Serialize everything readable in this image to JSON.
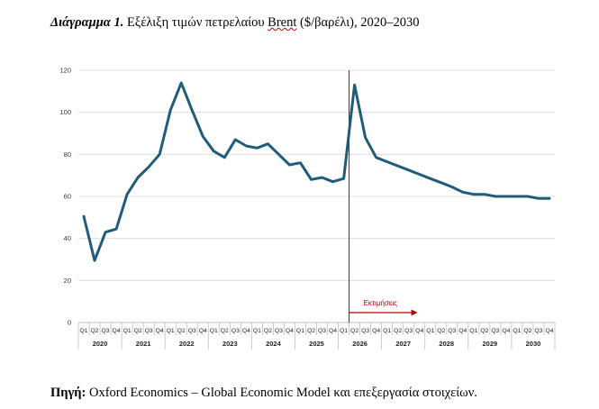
{
  "caption": {
    "label": "Διάγραμμα 1.",
    "text_before": " Εξέλιξη τιμών πετρελαίου ",
    "brent": "Brent",
    "text_after": " ($/βαρέλι), 2020–2030"
  },
  "source": {
    "label": "Πηγή:",
    "text": " Oxford Economics – Global Economic Model και επεξεργασία στοιχείων."
  },
  "chart_data": {
    "type": "line",
    "title": "",
    "xlabel": "",
    "ylabel": "",
    "ylim": [
      0,
      120
    ],
    "yticks": [
      0,
      20,
      40,
      60,
      80,
      100,
      120
    ],
    "grid": "horizontal",
    "quarters": [
      "Q1",
      "Q2",
      "Q3",
      "Q4"
    ],
    "years": [
      "2020",
      "2021",
      "2022",
      "2023",
      "2024",
      "2025",
      "2026",
      "2027",
      "2028",
      "2029",
      "2030"
    ],
    "series": [
      {
        "color": "#1f5c7a",
        "values": [
          50.5,
          29.5,
          43,
          44.5,
          61,
          69,
          74,
          80,
          101,
          114,
          101,
          88.5,
          81.5,
          78.5,
          87,
          84,
          83,
          85,
          80,
          75,
          76,
          68,
          69,
          67,
          68.5,
          113,
          88,
          78.5,
          76.5,
          74.5,
          72.5,
          70.5,
          68.5,
          66.5,
          64.5,
          62,
          61,
          61,
          60,
          60,
          60,
          60,
          59,
          59
        ]
      }
    ],
    "annotation": {
      "text": "Εκτιμήσεις",
      "color": "#b00000",
      "divider_after_index": 24
    }
  }
}
